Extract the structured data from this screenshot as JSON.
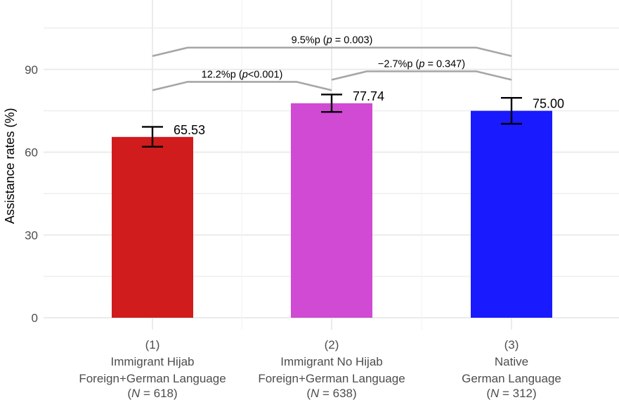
{
  "chart_data": {
    "type": "bar",
    "ylabel": "Assistance rates (%)",
    "ylim": [
      0,
      105
    ],
    "yticks": [
      0,
      30,
      60,
      90
    ],
    "grid": true,
    "categories": [
      {
        "lines": [
          "(1)",
          "Immigrant Hijab",
          "Foreign+German Language"
        ],
        "n_prefix": "(",
        "n_var": "N",
        "n_suffix": " = 618)"
      },
      {
        "lines": [
          "(2)",
          "Immigrant No Hijab",
          "Foreign+German Language"
        ],
        "n_prefix": "(",
        "n_var": "N",
        "n_suffix": " = 638)"
      },
      {
        "lines": [
          "(3)",
          "Native",
          "German Language"
        ],
        "n_prefix": "(",
        "n_var": "N",
        "n_suffix": " = 312)"
      }
    ],
    "values": [
      65.53,
      77.74,
      75.0
    ],
    "value_labels": [
      "65.53",
      "77.74",
      "75.00"
    ],
    "ci_low": [
      62.0,
      74.6,
      70.3
    ],
    "ci_high": [
      69.2,
      80.9,
      79.7
    ],
    "colors": [
      "#d01c1c",
      "#d04ad3",
      "#1a1aff"
    ],
    "comparisons": [
      {
        "from": 1,
        "to": 3,
        "y": 97.9,
        "label_pre": "9.5%p (",
        "label_var": "p",
        "label_post": " = 0.003)"
      },
      {
        "from": 1,
        "to": 2,
        "y": 85.5,
        "label_pre": "12.2%p (",
        "label_var": "p",
        "label_post": "<0.001)"
      },
      {
        "from": 2,
        "to": 3,
        "y": 89.3,
        "label_pre": "−2.7%p (",
        "label_var": "p",
        "label_post": " = 0.347)"
      }
    ]
  }
}
